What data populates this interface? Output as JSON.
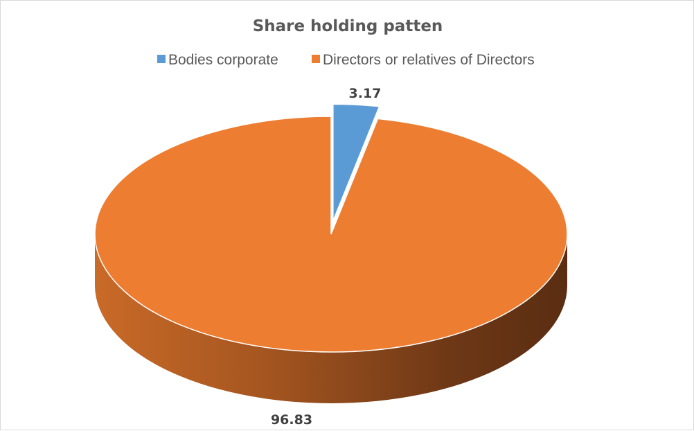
{
  "chart_data": {
    "type": "pie",
    "title": "Share holding patten",
    "categories": [
      "Bodies corporate",
      "Directors or relatives of Directors"
    ],
    "values": [
      3.17,
      96.83
    ],
    "data_labels": [
      "3.17",
      "96.83"
    ],
    "colors": [
      "#5b9bd5",
      "#ed7d31"
    ],
    "style": "3d",
    "exploded_slice": "Bodies corporate",
    "legend_position": "top"
  }
}
